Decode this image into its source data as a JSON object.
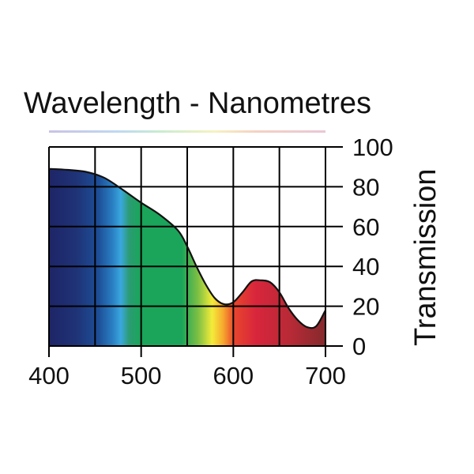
{
  "chart_data": {
    "type": "area",
    "title": "Wavelength - Nanometres",
    "xlabel": "",
    "ylabel": "Transmission",
    "xlim": [
      400,
      700
    ],
    "ylim": [
      0,
      100
    ],
    "x_ticks": [
      400,
      500,
      600,
      700
    ],
    "y_ticks": [
      0,
      20,
      40,
      60,
      80,
      100
    ],
    "grid": true,
    "series": [
      {
        "name": "Transmission",
        "x": [
          400,
          420,
          440,
          460,
          480,
          500,
          520,
          540,
          550,
          560,
          570,
          580,
          590,
          600,
          610,
          620,
          630,
          640,
          650,
          660,
          670,
          680,
          690,
          700
        ],
        "y": [
          89,
          88.5,
          87.5,
          84.5,
          78.5,
          72,
          66,
          58,
          50,
          40,
          31,
          24,
          21,
          22,
          27,
          32.5,
          33,
          32,
          27,
          19,
          13,
          9.5,
          10,
          18
        ]
      }
    ]
  }
}
